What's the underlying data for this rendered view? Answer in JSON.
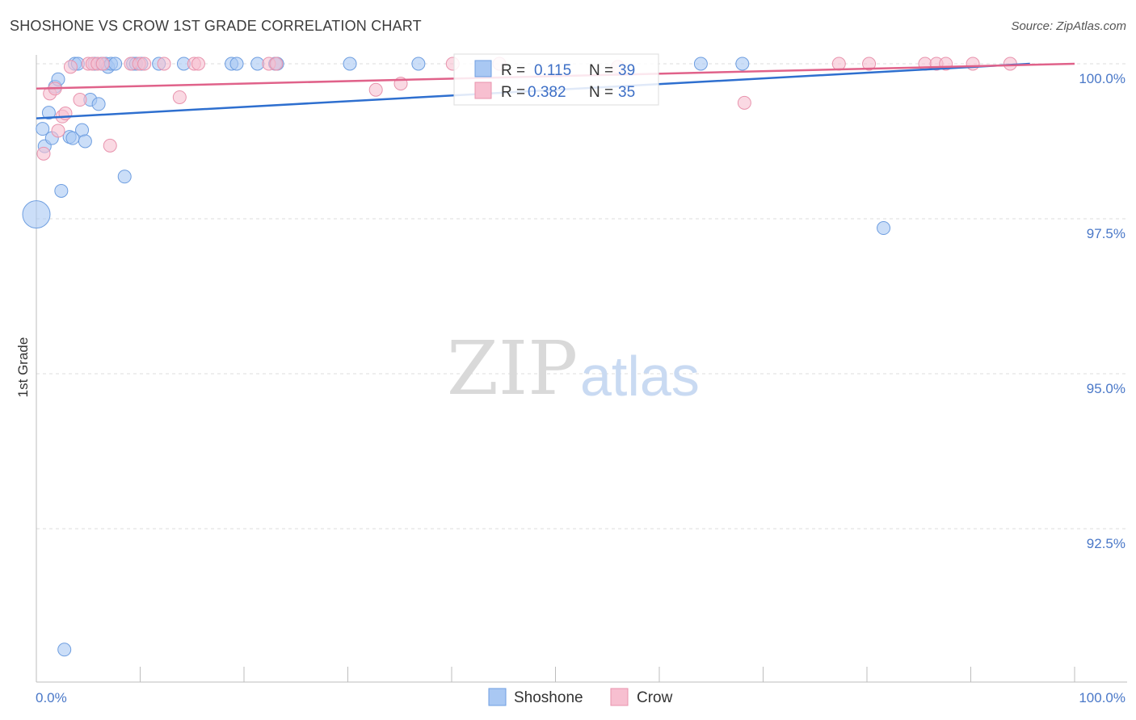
{
  "header": {
    "title": "SHOSHONE VS CROW 1ST GRADE CORRELATION CHART",
    "source": "Source: ZipAtlas.com"
  },
  "watermark": {
    "part1": "ZIP",
    "part2": "atlas"
  },
  "colors": {
    "shoshone_fill": "#a9c8f3",
    "shoshone_stroke": "#6e9ee0",
    "shoshone_line": "#2e6fcf",
    "crow_fill": "#f7bfd0",
    "crow_stroke": "#e893ad",
    "crow_line": "#e0628a",
    "tick_text": "#4a78c8",
    "grid": "#dcdcdc"
  },
  "stats": {
    "shoshone": {
      "r_label": "R =",
      "r_value": "0.115",
      "n_label": "N =",
      "n_value": "39"
    },
    "crow": {
      "r_label": "R =",
      "r_value": "0.382",
      "n_label": "N =",
      "n_value": "35"
    }
  },
  "legend": {
    "shoshone": "Shoshone",
    "crow": "Crow"
  },
  "chart_data": {
    "type": "scatter",
    "title": "SHOSHONE VS CROW 1ST GRADE CORRELATION CHART",
    "xlabel": "",
    "ylabel": "1st Grade",
    "xlim": [
      0,
      100
    ],
    "ylim": [
      90.2,
      100.2
    ],
    "x_tick_labels": [
      "0.0%",
      "100.0%"
    ],
    "y_ticks": [
      {
        "value": 100.0,
        "label": "100.0%"
      },
      {
        "value": 97.5,
        "label": "97.5%"
      },
      {
        "value": 95.0,
        "label": "95.0%"
      },
      {
        "value": 92.5,
        "label": "92.5%"
      }
    ],
    "series": [
      {
        "name": "Shoshone",
        "r": 0.115,
        "n": 39,
        "trend": {
          "x": [
            0,
            95.7
          ],
          "y": [
            99.12,
            100.0
          ]
        },
        "points": [
          {
            "x": 0.0,
            "y": 97.57,
            "big": true
          },
          {
            "x": 0.6,
            "y": 98.95
          },
          {
            "x": 0.8,
            "y": 98.67
          },
          {
            "x": 1.2,
            "y": 99.21
          },
          {
            "x": 1.5,
            "y": 98.8
          },
          {
            "x": 1.8,
            "y": 99.63
          },
          {
            "x": 2.1,
            "y": 99.75
          },
          {
            "x": 2.4,
            "y": 97.95
          },
          {
            "x": 2.7,
            "y": 90.55
          },
          {
            "x": 3.2,
            "y": 98.82
          },
          {
            "x": 3.5,
            "y": 98.8
          },
          {
            "x": 3.7,
            "y": 100.0
          },
          {
            "x": 4.0,
            "y": 100.0
          },
          {
            "x": 4.4,
            "y": 98.93
          },
          {
            "x": 4.7,
            "y": 98.75
          },
          {
            "x": 5.2,
            "y": 99.42
          },
          {
            "x": 5.6,
            "y": 100.0
          },
          {
            "x": 6.0,
            "y": 99.35
          },
          {
            "x": 6.3,
            "y": 100.0
          },
          {
            "x": 6.7,
            "y": 100.0
          },
          {
            "x": 6.9,
            "y": 99.95
          },
          {
            "x": 7.2,
            "y": 100.0
          },
          {
            "x": 7.6,
            "y": 100.0
          },
          {
            "x": 8.5,
            "y": 98.18
          },
          {
            "x": 9.3,
            "y": 100.0
          },
          {
            "x": 9.6,
            "y": 100.0
          },
          {
            "x": 10.1,
            "y": 100.0
          },
          {
            "x": 11.8,
            "y": 100.0
          },
          {
            "x": 14.2,
            "y": 100.0
          },
          {
            "x": 18.8,
            "y": 100.0
          },
          {
            "x": 19.3,
            "y": 100.0
          },
          {
            "x": 21.3,
            "y": 100.0
          },
          {
            "x": 23.0,
            "y": 100.0
          },
          {
            "x": 23.2,
            "y": 100.0
          },
          {
            "x": 30.2,
            "y": 100.0
          },
          {
            "x": 36.8,
            "y": 100.0
          },
          {
            "x": 64.0,
            "y": 100.0
          },
          {
            "x": 68.0,
            "y": 100.0
          },
          {
            "x": 81.6,
            "y": 97.35
          }
        ]
      },
      {
        "name": "Crow",
        "r": 0.382,
        "n": 35,
        "trend": {
          "x": [
            0,
            100
          ],
          "y": [
            99.6,
            100.0
          ]
        },
        "points": [
          {
            "x": 0.7,
            "y": 98.55
          },
          {
            "x": 1.3,
            "y": 99.52
          },
          {
            "x": 1.8,
            "y": 99.6
          },
          {
            "x": 2.1,
            "y": 98.92
          },
          {
            "x": 2.5,
            "y": 99.15
          },
          {
            "x": 2.8,
            "y": 99.2
          },
          {
            "x": 3.3,
            "y": 99.95
          },
          {
            "x": 4.2,
            "y": 99.42
          },
          {
            "x": 5.0,
            "y": 100.0
          },
          {
            "x": 5.4,
            "y": 100.0
          },
          {
            "x": 5.9,
            "y": 100.0
          },
          {
            "x": 6.4,
            "y": 100.0
          },
          {
            "x": 7.1,
            "y": 98.68
          },
          {
            "x": 9.1,
            "y": 100.0
          },
          {
            "x": 9.9,
            "y": 100.0
          },
          {
            "x": 10.4,
            "y": 100.0
          },
          {
            "x": 12.3,
            "y": 100.0
          },
          {
            "x": 13.8,
            "y": 99.46
          },
          {
            "x": 15.2,
            "y": 100.0
          },
          {
            "x": 15.6,
            "y": 100.0
          },
          {
            "x": 22.4,
            "y": 100.0
          },
          {
            "x": 23.1,
            "y": 100.0
          },
          {
            "x": 32.7,
            "y": 99.58
          },
          {
            "x": 35.1,
            "y": 99.68
          },
          {
            "x": 40.1,
            "y": 100.0
          },
          {
            "x": 44.6,
            "y": 100.0
          },
          {
            "x": 56.0,
            "y": 99.95
          },
          {
            "x": 68.2,
            "y": 99.37
          },
          {
            "x": 77.3,
            "y": 100.0
          },
          {
            "x": 80.2,
            "y": 100.0
          },
          {
            "x": 85.6,
            "y": 100.0
          },
          {
            "x": 86.7,
            "y": 100.0
          },
          {
            "x": 87.6,
            "y": 100.0
          },
          {
            "x": 90.2,
            "y": 100.0
          },
          {
            "x": 93.8,
            "y": 100.0
          }
        ]
      }
    ]
  }
}
